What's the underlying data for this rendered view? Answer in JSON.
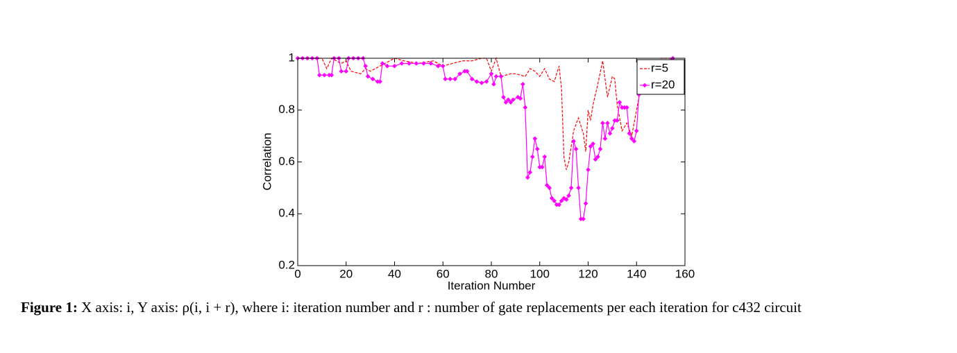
{
  "chart_data": {
    "type": "line",
    "xlabel": "Iteration Number",
    "ylabel": "Correlation",
    "xlim": [
      0,
      160
    ],
    "xticks": [
      0,
      20,
      40,
      60,
      80,
      100,
      120,
      140,
      160
    ],
    "ylim": [
      0.2,
      1
    ],
    "yticks": [
      0.2,
      0.4,
      0.6,
      0.8,
      1
    ],
    "grid": false,
    "legend": "upper right",
    "series": [
      {
        "name": "r=5",
        "color": "#ff0000",
        "dash": true,
        "marker": false,
        "x": [
          0,
          10,
          12,
          14,
          18,
          20,
          22,
          26,
          28,
          30,
          34,
          38,
          40,
          44,
          50,
          56,
          60,
          64,
          68,
          72,
          76,
          78,
          80,
          82,
          84,
          88,
          90,
          94,
          96,
          98,
          100,
          102,
          104,
          106,
          108,
          109,
          110,
          111,
          112,
          114,
          116,
          118,
          119,
          120,
          121,
          122,
          124,
          126,
          128,
          130,
          131,
          132,
          134,
          136,
          138,
          140,
          142,
          146,
          150,
          155
        ],
        "values": [
          1.0,
          1.0,
          0.96,
          1.0,
          0.98,
          0.99,
          0.95,
          0.94,
          0.96,
          0.95,
          0.97,
          0.99,
          1.0,
          0.99,
          0.98,
          0.99,
          0.97,
          0.98,
          0.99,
          0.99,
          1.0,
          1.0,
          0.95,
          1.0,
          0.93,
          0.94,
          0.94,
          0.93,
          0.96,
          0.95,
          0.93,
          0.96,
          0.92,
          0.91,
          0.97,
          0.88,
          0.62,
          0.57,
          0.6,
          0.72,
          0.77,
          0.71,
          0.64,
          0.8,
          0.76,
          0.82,
          0.9,
          0.99,
          0.85,
          0.93,
          0.92,
          0.82,
          0.72,
          0.75,
          0.7,
          0.8,
          0.9,
          0.96,
          1.0,
          1.0
        ]
      },
      {
        "name": "r=20",
        "color": "#ff00ff",
        "dash": false,
        "marker": true,
        "x": [
          0,
          2,
          4,
          6,
          8,
          9,
          11,
          13,
          14,
          15,
          17,
          18,
          20,
          21,
          23,
          25,
          27,
          28,
          29,
          31,
          33,
          34,
          35,
          37,
          40,
          43,
          46,
          49,
          52,
          55,
          58,
          60,
          61,
          63,
          65,
          67,
          69,
          70,
          72,
          74,
          76,
          78,
          80,
          81,
          82,
          84,
          85,
          86,
          87,
          88,
          89,
          91,
          92,
          93,
          94,
          95,
          96,
          97,
          98,
          99,
          100,
          101,
          102,
          103,
          104,
          105,
          106,
          107,
          108,
          109,
          110,
          111,
          112,
          113,
          114,
          115,
          116,
          117,
          118,
          119,
          120,
          121,
          122,
          123,
          124,
          125,
          126,
          127,
          128,
          129,
          130,
          131,
          132,
          133,
          134,
          135,
          136,
          137,
          138,
          139,
          140,
          141,
          145,
          150,
          155
        ],
        "values": [
          1.0,
          1.0,
          1.0,
          1.0,
          1.0,
          0.935,
          0.935,
          0.935,
          0.935,
          1.0,
          1.0,
          0.95,
          0.95,
          1.0,
          1.0,
          1.0,
          1.0,
          0.97,
          0.93,
          0.92,
          0.91,
          0.91,
          0.98,
          0.97,
          0.97,
          0.98,
          0.98,
          0.98,
          0.98,
          0.98,
          0.97,
          0.97,
          0.92,
          0.92,
          0.92,
          0.94,
          0.95,
          0.95,
          0.92,
          0.91,
          0.905,
          0.91,
          0.94,
          0.9,
          0.93,
          0.93,
          0.85,
          0.83,
          0.84,
          0.83,
          0.84,
          0.85,
          0.845,
          0.9,
          0.81,
          0.54,
          0.56,
          0.62,
          0.69,
          0.65,
          0.58,
          0.58,
          0.62,
          0.51,
          0.5,
          0.46,
          0.45,
          0.435,
          0.435,
          0.45,
          0.46,
          0.455,
          0.47,
          0.5,
          0.68,
          0.65,
          0.5,
          0.38,
          0.38,
          0.44,
          0.57,
          0.66,
          0.67,
          0.61,
          0.62,
          0.65,
          0.75,
          0.69,
          0.75,
          0.71,
          0.73,
          0.76,
          0.76,
          0.83,
          0.81,
          0.81,
          0.81,
          0.71,
          0.69,
          0.68,
          0.72,
          0.86,
          0.93,
          0.98,
          1.0
        ]
      }
    ]
  },
  "caption": {
    "label": "Figure 1:",
    "text": "X axis: i, Y axis: ρ(i, i + r), where i: iteration number and r : number of gate replacements per each iteration for c432 circuit"
  }
}
